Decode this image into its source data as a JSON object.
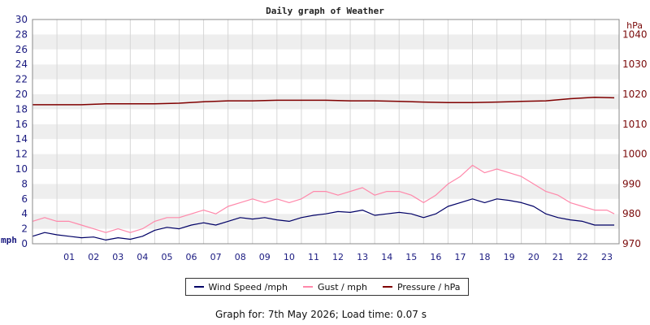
{
  "chart_data": {
    "type": "line",
    "title": "Daily graph of Weather",
    "ylabel_left": "mph",
    "ylabel_right": "hPa",
    "ylim_left": [
      0,
      30
    ],
    "ylim_right": [
      970,
      1045
    ],
    "yticks_left": [
      "0",
      "2",
      "4",
      "6",
      "8",
      "10",
      "12",
      "14",
      "16",
      "18",
      "20",
      "22",
      "24",
      "26",
      "28",
      "30"
    ],
    "yticks_right": [
      "970",
      "980",
      "990",
      "1000",
      "1010",
      "1020",
      "1030",
      "1040"
    ],
    "xlim": [
      0,
      24
    ],
    "xticks": [
      "01",
      "02",
      "03",
      "04",
      "05",
      "06",
      "07",
      "08",
      "09",
      "10",
      "11",
      "12",
      "13",
      "14",
      "15",
      "16",
      "17",
      "18",
      "19",
      "20",
      "21",
      "22",
      "23"
    ],
    "grid": true,
    "legend_placement": "bottom",
    "series": [
      {
        "name": "Wind Speed /mph",
        "color": "#000066",
        "axis": "left",
        "x": [
          0,
          0.5,
          1,
          1.5,
          2,
          2.5,
          3,
          3.5,
          4,
          4.5,
          5,
          5.5,
          6,
          6.5,
          7,
          7.5,
          8,
          8.5,
          9,
          9.5,
          10,
          10.5,
          11,
          11.5,
          12,
          12.5,
          13,
          13.5,
          14,
          14.5,
          15,
          15.5,
          16,
          16.5,
          17,
          17.5,
          18,
          18.5,
          19,
          19.5,
          20,
          20.5,
          21,
          21.5,
          22,
          22.5,
          23,
          23.5,
          23.8
        ],
        "y": [
          1.0,
          1.5,
          1.2,
          1.0,
          0.8,
          0.9,
          0.5,
          0.8,
          0.6,
          1.0,
          1.8,
          2.2,
          2.0,
          2.5,
          2.8,
          2.5,
          3.0,
          3.5,
          3.3,
          3.5,
          3.2,
          3.0,
          3.5,
          3.8,
          4.0,
          4.3,
          4.2,
          4.5,
          3.8,
          4.0,
          4.2,
          4.0,
          3.5,
          4.0,
          5.0,
          5.5,
          6.0,
          5.5,
          6.0,
          5.8,
          5.5,
          5.0,
          4.0,
          3.5,
          3.2,
          3.0,
          2.5,
          2.5,
          2.5
        ]
      },
      {
        "name": "Gust / mph",
        "color": "#ff88aa",
        "axis": "left",
        "x": [
          0,
          0.5,
          1,
          1.5,
          2,
          2.5,
          3,
          3.5,
          4,
          4.5,
          5,
          5.5,
          6,
          6.5,
          7,
          7.5,
          8,
          8.5,
          9,
          9.5,
          10,
          10.5,
          11,
          11.5,
          12,
          12.5,
          13,
          13.5,
          14,
          14.5,
          15,
          15.5,
          16,
          16.5,
          17,
          17.5,
          18,
          18.5,
          19,
          19.5,
          20,
          20.5,
          21,
          21.5,
          22,
          22.5,
          23,
          23.5,
          23.8
        ],
        "y": [
          3.0,
          3.5,
          3.0,
          3.0,
          2.5,
          2.0,
          1.5,
          2.0,
          1.5,
          2.0,
          3.0,
          3.5,
          3.5,
          4.0,
          4.5,
          4.0,
          5.0,
          5.5,
          6.0,
          5.5,
          6.0,
          5.5,
          6.0,
          7.0,
          7.0,
          6.5,
          7.0,
          7.5,
          6.5,
          7.0,
          7.0,
          6.5,
          5.5,
          6.5,
          8.0,
          9.0,
          10.5,
          9.5,
          10.0,
          9.5,
          9.0,
          8.0,
          7.0,
          6.5,
          5.5,
          5.0,
          4.5,
          4.5,
          4.0
        ]
      },
      {
        "name": "Pressure / hPa",
        "color": "#800000",
        "axis": "right",
        "x": [
          0,
          1,
          2,
          3,
          4,
          5,
          6,
          7,
          8,
          9,
          10,
          11,
          12,
          13,
          14,
          15,
          16,
          17,
          18,
          19,
          20,
          21,
          22,
          23,
          23.8
        ],
        "y": [
          1016.5,
          1016.5,
          1016.5,
          1016.8,
          1016.8,
          1016.8,
          1017.0,
          1017.5,
          1017.8,
          1017.8,
          1018.0,
          1018.0,
          1018.0,
          1017.8,
          1017.8,
          1017.6,
          1017.4,
          1017.2,
          1017.2,
          1017.4,
          1017.6,
          1017.8,
          1018.5,
          1019.0,
          1018.8
        ]
      }
    ]
  },
  "footer": {
    "text": "Graph for: 7th May 2026; Load time: 0.07 s"
  }
}
